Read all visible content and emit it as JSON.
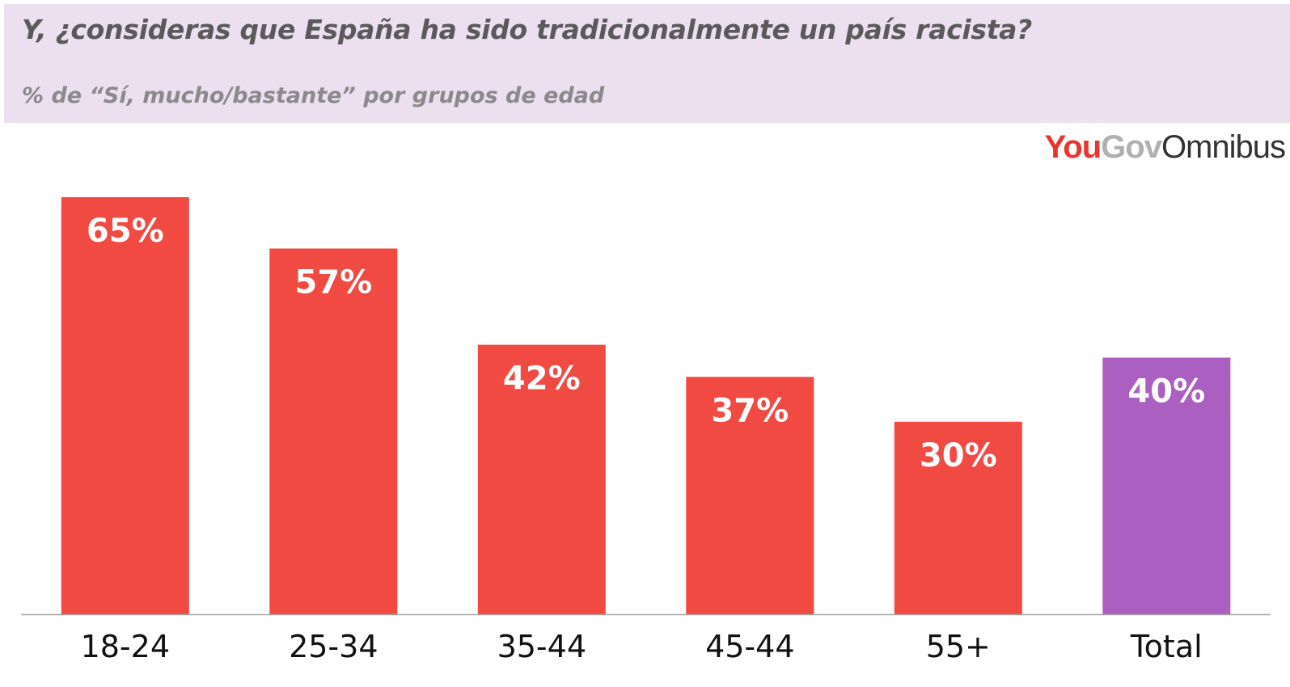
{
  "header": {
    "title": "Y, ¿consideras que España ha sido tradicionalmente un país racista?",
    "subtitle": "% de “Sí, mucho/bastante” por grupos de edad"
  },
  "logo": {
    "part1": "You",
    "part2": "Gov",
    "part3": "Omnibus"
  },
  "colors": {
    "bar": "#f04a42",
    "highlight": "#ab5fc1",
    "header_bg": "#ecdfef"
  },
  "chart_data": {
    "type": "bar",
    "categories": [
      "18-24",
      "25-34",
      "35-44",
      "45-44",
      "55+",
      "Total"
    ],
    "values": [
      65,
      57,
      42,
      37,
      30,
      40
    ],
    "value_labels": [
      "65%",
      "57%",
      "42%",
      "37%",
      "30%",
      "40%"
    ],
    "highlight_category": "Total",
    "ylim": [
      0,
      65
    ],
    "grid": false,
    "title": "Y, ¿consideras que España ha sido tradicionalmente un país racista?",
    "xlabel": "",
    "ylabel": ""
  }
}
